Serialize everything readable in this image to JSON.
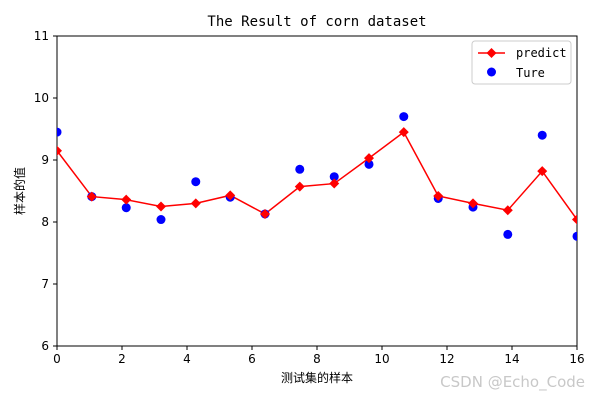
{
  "chart_data": {
    "type": "line",
    "title": "The Result of corn dataset",
    "xlabel": "测试集的样本",
    "ylabel": "样本的值",
    "xlim": [
      0,
      16
    ],
    "ylim": [
      6,
      11
    ],
    "xticks": [
      "0",
      "2",
      "4",
      "6",
      "8",
      "10",
      "12",
      "14",
      "16"
    ],
    "yticks": [
      "6",
      "7",
      "8",
      "9",
      "10",
      "11"
    ],
    "grid": false,
    "legend_position": "top-right",
    "series": [
      {
        "name": "predict",
        "style": "line-diamond",
        "color": "#ff0000",
        "points": [
          [
            0.0,
            9.15
          ],
          [
            1.07,
            8.41
          ],
          [
            2.13,
            8.36
          ],
          [
            3.2,
            8.25
          ],
          [
            4.27,
            8.3
          ],
          [
            5.33,
            8.43
          ],
          [
            6.4,
            8.13
          ],
          [
            7.47,
            8.57
          ],
          [
            8.53,
            8.62
          ],
          [
            9.6,
            9.03
          ],
          [
            10.67,
            9.45
          ],
          [
            11.73,
            8.42
          ],
          [
            12.8,
            8.3
          ],
          [
            13.87,
            8.19
          ],
          [
            14.93,
            8.82
          ],
          [
            16.0,
            8.04
          ]
        ]
      },
      {
        "name": "Ture",
        "style": "scatter",
        "color": "#0000ff",
        "points": [
          [
            0.0,
            9.45
          ],
          [
            1.07,
            8.41
          ],
          [
            2.13,
            8.23
          ],
          [
            3.2,
            8.04
          ],
          [
            4.27,
            8.65
          ],
          [
            5.33,
            8.4
          ],
          [
            6.4,
            8.13
          ],
          [
            7.47,
            8.85
          ],
          [
            8.53,
            8.73
          ],
          [
            9.6,
            8.93
          ],
          [
            10.67,
            9.7
          ],
          [
            11.73,
            8.38
          ],
          [
            12.8,
            8.24
          ],
          [
            13.87,
            7.8
          ],
          [
            14.93,
            9.4
          ],
          [
            16.0,
            7.77
          ]
        ]
      }
    ]
  },
  "watermark": "CSDN @Echo_Code"
}
